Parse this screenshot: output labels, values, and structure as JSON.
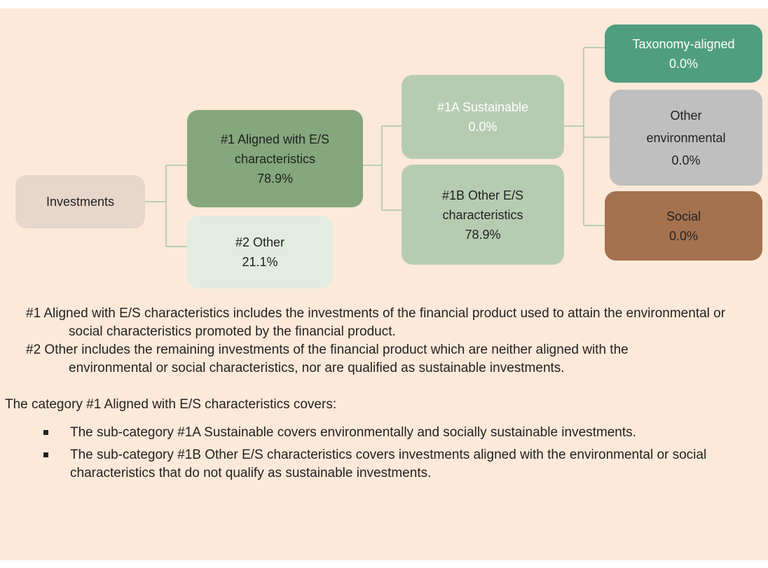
{
  "nodes": [
    {
      "label": "Investments"
    },
    {
      "label": "#1 Aligned with E/S characteristics",
      "value": "78.9%"
    },
    {
      "label": "#2 Other",
      "value": "21.1%"
    },
    {
      "label": "#1A Sustainable",
      "value": "0.0%"
    },
    {
      "label": "#1B Other E/S characteristics",
      "value": "78.9%"
    },
    {
      "label": "Taxonomy-aligned",
      "value": "0.0%"
    },
    {
      "label": "Other environmental",
      "value": "0.0%"
    },
    {
      "label": "Social",
      "value": "0.0%"
    }
  ],
  "notes": [
    "#1 Aligned with E/S characteristics includes the investments of the financial product used to attain the environmental or social characteristics promoted by the financial product.",
    "#2 Other includes the remaining investments of the financial product which are neither aligned with the environmental or social characteristics, nor are qualified as sustainable investments."
  ],
  "intro": "The category #1 Aligned with E/S characteristics covers:",
  "bullets": [
    "The sub-category #1A Sustainable covers environmentally and socially sustainable investments.",
    "The sub-category #1B Other E/S characteristics covers investments aligned with the environmental or social characteristics that do not qualify as sustainable investments."
  ]
}
